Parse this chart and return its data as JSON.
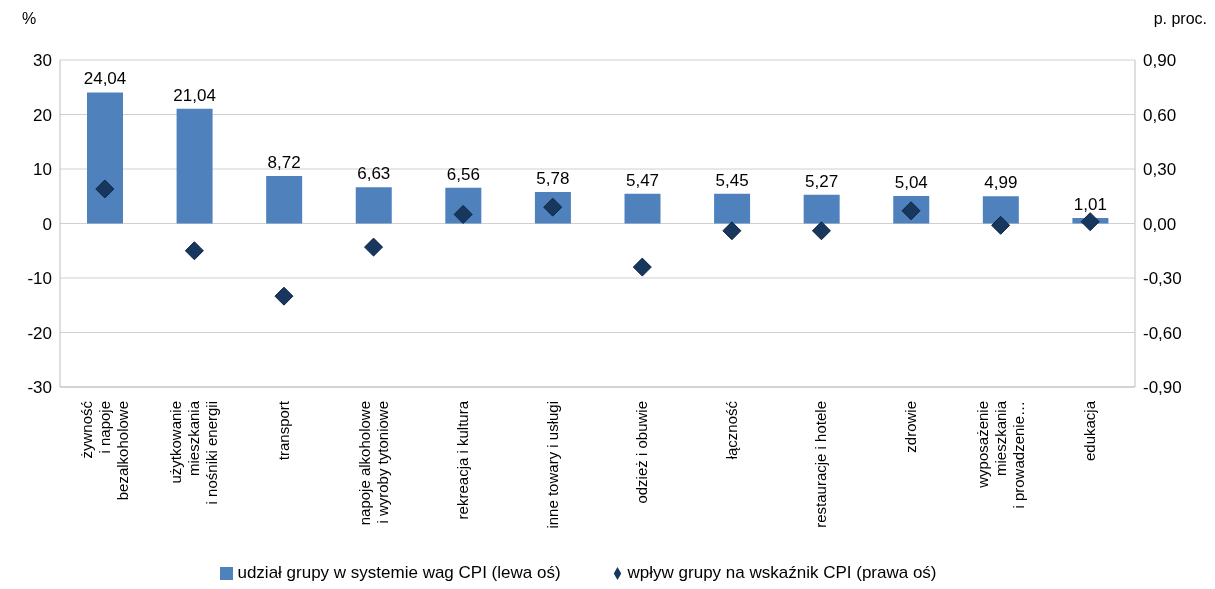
{
  "chart_data": {
    "type": "bar",
    "ylabel": "%",
    "y2label": "p. proc.",
    "categories": [
      "żywność\ni napoje\nbezalkoholowe",
      "użytkowanie\nmieszkania\ni nośniki energii",
      "transport",
      "napoje alkoholowe\ni wyroby tytoniowe",
      "rekreacja i kultura",
      "inne towary i usługi",
      "odzież i obuwie",
      "łączność",
      "restauracje i hotele",
      "zdrowie",
      "wyposażenie\nmieszkania\ni prowadzenie…",
      "edukacja"
    ],
    "series": [
      {
        "name": "udział grupy w systemie wag CPI (lewa oś)",
        "color": "#4f81bd",
        "values": [
          24.04,
          21.04,
          8.72,
          6.63,
          6.56,
          5.78,
          5.47,
          5.45,
          5.27,
          5.04,
          4.99,
          1.01
        ],
        "value_labels": [
          "24,04",
          "21,04",
          "8,72",
          "6,63",
          "6,56",
          "5,78",
          "5,47",
          "5,45",
          "5,27",
          "5,04",
          "4,99",
          "1,01"
        ]
      },
      {
        "name": "wpływ grupy na wskaźnik CPI (prawa oś)",
        "type": "scatter",
        "axis": "y2",
        "color": "#17375e",
        "marker": "diamond",
        "values": [
          0.19,
          -0.15,
          -0.4,
          -0.13,
          0.05,
          0.09,
          -0.24,
          -0.04,
          -0.04,
          0.07,
          -0.01,
          0.01
        ]
      }
    ],
    "ylim": [
      -30,
      30
    ],
    "yticks": [
      -30,
      -20,
      -10,
      0,
      10,
      20,
      30
    ],
    "y2lim": [
      -0.9,
      0.9
    ],
    "y2ticks": [
      {
        "value": -0.9,
        "label": "-0,90"
      },
      {
        "value": -0.6,
        "label": "-0,60"
      },
      {
        "value": -0.3,
        "label": "-0,30"
      },
      {
        "value": 0,
        "label": "0,00"
      },
      {
        "value": 0.3,
        "label": "0,30"
      },
      {
        "value": 0.6,
        "label": "0,60"
      },
      {
        "value": 0.9,
        "label": "0,90"
      }
    ],
    "grid": "y",
    "legend": "bottom"
  }
}
